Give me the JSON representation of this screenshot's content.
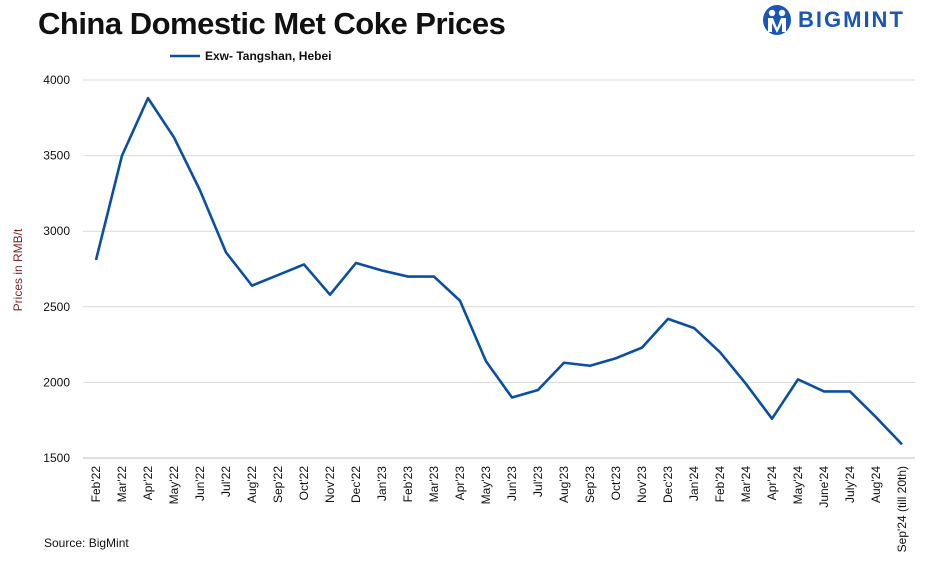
{
  "title": "China Domestic Met Coke Prices",
  "logo": {
    "text": "BIGMINT",
    "color": "#1a56b8"
  },
  "source": "Source: BigMint",
  "chart_data": {
    "type": "line",
    "title": "China Domestic Met Coke Prices",
    "ylabel": "Prices in RMB/t",
    "xlabel": "",
    "ylim": [
      1500,
      4000
    ],
    "yticks": [
      1500,
      2000,
      2500,
      3000,
      3500,
      4000
    ],
    "grid": true,
    "legend_position": "top-left",
    "categories": [
      "Feb'22",
      "Mar'22",
      "Apr'22",
      "May'22",
      "Jun'22",
      "Jul'22",
      "Aug'22",
      "Sep'22",
      "Oct'22",
      "Nov'22",
      "Dec'22",
      "Jan'23",
      "Feb'23",
      "Mar'23",
      "Apr'23",
      "May'23",
      "Jun'23",
      "Jul'23",
      "Aug'23",
      "Sep'23",
      "Oct'23",
      "Nov'23",
      "Dec'23",
      "Jan'24",
      "Feb'24",
      "Mar'24",
      "Apr'24",
      "May'24",
      "June'24",
      "July'24",
      "Aug'24",
      "Sep'24 (till 20th)"
    ],
    "series": [
      {
        "name": "Exw- Tangshan, Hebei",
        "color": "#0b4ea2",
        "values": [
          2810,
          3500,
          3880,
          3620,
          3270,
          2860,
          2640,
          2710,
          2780,
          2580,
          2790,
          2740,
          2700,
          2700,
          2540,
          2140,
          1900,
          1950,
          2130,
          2110,
          2160,
          2230,
          2420,
          2360,
          2200,
          1990,
          1760,
          2020,
          1940,
          1940,
          1770,
          1590
        ]
      }
    ]
  }
}
